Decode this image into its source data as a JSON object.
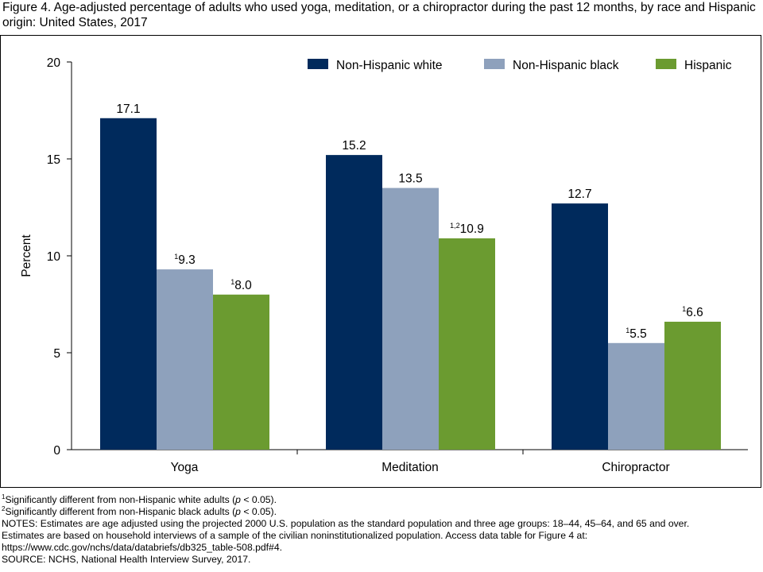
{
  "title": "Figure 4. Age-adjusted percentage of adults who used yoga, meditation, or a chiropractor during the past 12 months, by race and Hispanic origin: United States, 2017",
  "chart_data": {
    "type": "bar",
    "title": "",
    "xlabel": "",
    "ylabel": "Percent",
    "ylim": [
      0,
      20
    ],
    "yticks": [
      "0",
      "5",
      "10",
      "15",
      "20"
    ],
    "grid": false,
    "legend_position": "top-right",
    "categories": [
      "Yoga",
      "Meditation",
      "Chiropractor"
    ],
    "series": [
      {
        "name": "Non-Hispanic white",
        "color": "#002a5c",
        "values": [
          17.1,
          15.2,
          12.7
        ],
        "labels": [
          "17.1",
          "15.2",
          "12.7"
        ],
        "label_sups": [
          "",
          "",
          ""
        ]
      },
      {
        "name": "Non-Hispanic black",
        "color": "#8ea1bc",
        "values": [
          9.3,
          13.5,
          5.5
        ],
        "labels": [
          "9.3",
          "13.5",
          "5.5"
        ],
        "label_sups": [
          "1",
          "",
          "1"
        ]
      },
      {
        "name": "Hispanic",
        "color": "#6b9b30",
        "values": [
          8.0,
          10.9,
          6.6
        ],
        "labels": [
          "8.0",
          "10.9",
          "6.6"
        ],
        "label_sups": [
          "1",
          "1,2",
          "1"
        ]
      }
    ]
  },
  "notes": {
    "footnote1_sup": "1",
    "footnote1_text_a": "Significantly different from non-Hispanic white adults (",
    "footnote1_p": "p",
    "footnote1_text_b": " < 0.05).",
    "footnote2_sup": "2",
    "footnote2_text_a": "Significantly different from non-Hispanic black adults (",
    "footnote2_p": "p",
    "footnote2_text_b": " < 0.05).",
    "notes_line1": "NOTES: Estimates are age adjusted using the projected 2000 U.S. population as the standard population and three age groups: 18–44, 45–64, and 65 and over.",
    "notes_line2": "Estimates are based on household interviews of a sample of the civilian noninstitutionalized population. Access data table for Figure 4 at:",
    "notes_line3": "https://www.cdc.gov/nchs/data/databriefs/db325_table-508.pdf#4.",
    "source": "SOURCE: NCHS, National Health Interview Survey, 2017."
  }
}
